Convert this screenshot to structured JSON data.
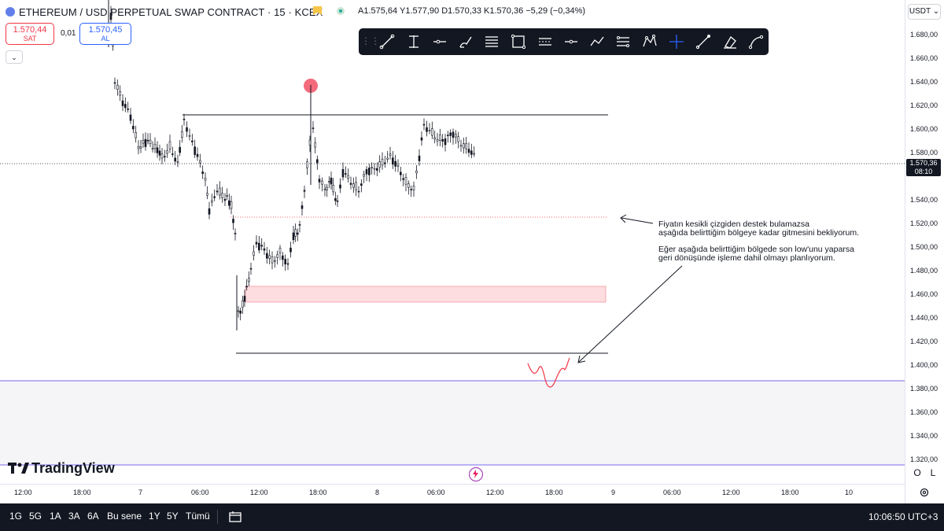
{
  "header": {
    "title": "ETHEREUM / USD PERPETUAL SWAP CONTRACT · 15 · KCEX",
    "ohlc": "A1.575,64  Y1.577,90  D1.570,33  K1.570,36  −5,29 (−0,34%)"
  },
  "trade": {
    "sell_price": "1.570,44",
    "sell_label": "SAT",
    "spread": "0,01",
    "buy_price": "1.570,45",
    "buy_label": "AL"
  },
  "currency_selector": "USDT",
  "price_axis": {
    "labels": [
      "1.680,00",
      "1.660,00",
      "1.640,00",
      "1.620,00",
      "1.600,00",
      "1.580,00",
      "1.540,00",
      "1.520,00",
      "1.500,00",
      "1.480,00",
      "1.460,00",
      "1.440,00",
      "1.420,00",
      "1.400,00",
      "1.380,00",
      "1.360,00",
      "1.340,00",
      "1.320,00"
    ],
    "current_price": "1.570,36",
    "countdown": "08:10"
  },
  "time_axis": {
    "labels": [
      "12:00",
      "18:00",
      "7",
      "06:00",
      "12:00",
      "18:00",
      "8",
      "06:00",
      "12:00",
      "18:00",
      "9",
      "06:00",
      "12:00",
      "18:00",
      "10"
    ]
  },
  "annotation": {
    "line1": "Fiyatın kesikli çizgiden destek bulamazsa",
    "line2": "aşağıda belirttiğim bölgeye kadar gitmesini bekliyorum.",
    "line3": "Eğer aşağıda belirttiğim bölgede son low'unu yaparsa",
    "line4": "geri dönüşünde işleme dahil olmayı planlıyorum."
  },
  "branding": {
    "logo_text": "TradingView"
  },
  "zoom": {
    "log_label": "O",
    "scale_label": "L"
  },
  "bottom_bar": {
    "timeframes": [
      "1G",
      "5G",
      "1A",
      "3A",
      "6A",
      "Bu sene",
      "1Y",
      "5Y",
      "Tümü"
    ],
    "clock": "10:06:50 UTC+3"
  },
  "toolbar_icons": [
    "trend-line-icon",
    "vertical-line-icon",
    "horizontal-line-icon",
    "brush-icon",
    "fib-retracement-icon",
    "rectangle-icon",
    "parallel-channel-icon",
    "horizontal-ray-icon",
    "path-icon",
    "pitchfork-icon",
    "xabcd-pattern-icon",
    "crosshair-icon",
    "ruler-icon",
    "eraser-icon",
    "curve-icon"
  ],
  "colors": {
    "up": "#131722",
    "down": "#131722",
    "zone_fill": "#fddde0",
    "zone_border": "#f23645",
    "dashed_line": "#f23645",
    "purple_line": "#7b68ee",
    "accent_blue": "#2962ff"
  }
}
